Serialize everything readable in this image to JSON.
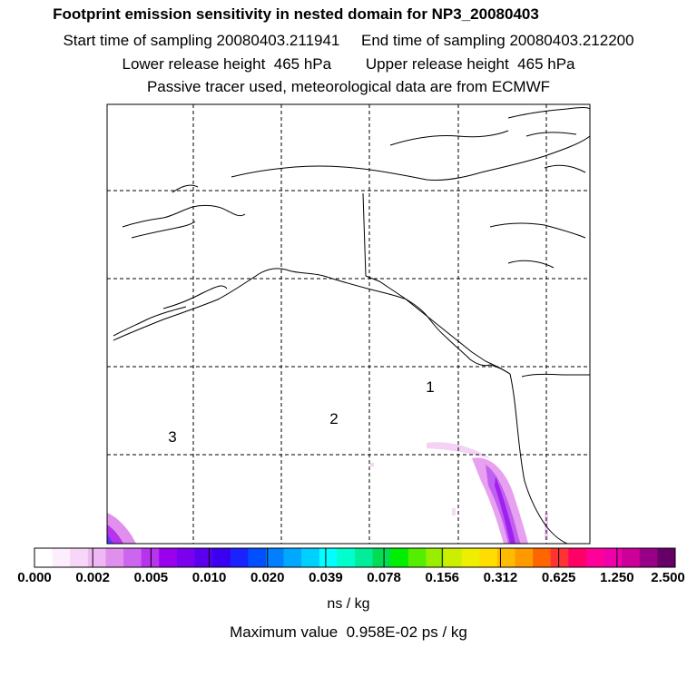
{
  "header": {
    "title": "Footprint emission sensitivity in nested domain for NP3_20080403",
    "sampling": "Start time of sampling 20080403.211941     End time of sampling 20080403.212200",
    "release": "Lower release height  465 hPa        Upper release height  465 hPa",
    "tracer": "Passive tracer used, meteorological data are from ECMWF"
  },
  "map": {
    "markers": [
      {
        "label": "1"
      },
      {
        "label": "2"
      },
      {
        "label": "3"
      }
    ]
  },
  "colorbar": {
    "ticks": [
      "0.000",
      "0.002",
      "0.005",
      "0.010",
      "0.020",
      "0.039",
      "0.078",
      "0.156",
      "0.312",
      "0.625",
      "1.250",
      "2.500"
    ],
    "colors": [
      "#ffffff",
      "#fdeefd",
      "#f8d6f8",
      "#f0b8f2",
      "#e090ec",
      "#cc66ee",
      "#b733ee",
      "#9900ee",
      "#7a00ee",
      "#5a00ee",
      "#3a00f0",
      "#1a22ff",
      "#0050ff",
      "#0080ff",
      "#00a8ff",
      "#00d0ff",
      "#00ffff",
      "#00ffcc",
      "#00ee99",
      "#00dd55",
      "#00ee00",
      "#55ee00",
      "#99ee00",
      "#ccee00",
      "#eeee00",
      "#ffdd00",
      "#ffbb00",
      "#ff9900",
      "#ff6600",
      "#ff3333",
      "#ff0066",
      "#ff0099",
      "#ee00aa",
      "#cc0099",
      "#990088",
      "#660066"
    ],
    "unit": "ns / kg"
  },
  "max_value": "Maximum value  0.958E-02 ps / kg"
}
